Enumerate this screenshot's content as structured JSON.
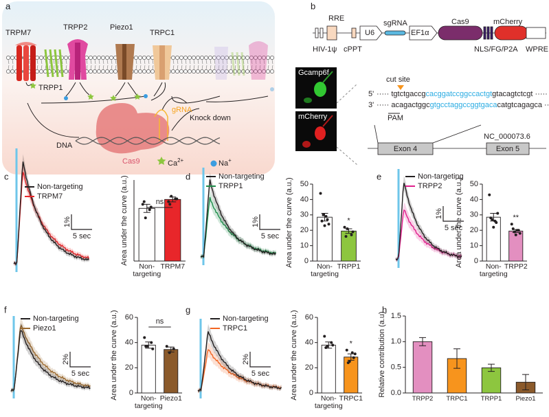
{
  "figure": {
    "panel_labels": [
      "a",
      "b"
    ],
    "a": {
      "channels": [
        "TRPM7",
        "TRPP2",
        "Piezo1",
        "TRPC1",
        "TRPP1"
      ],
      "grna": "gRNA",
      "dna": "DNA",
      "cas9": "Cas9",
      "knockdown": "Knock down",
      "ca": "Ca",
      "ca_charge": "2+",
      "na": "Na",
      "na_charge": "+"
    },
    "b": {
      "vector_top": [
        "RRE",
        "U6",
        "sgRNA",
        "EF1α",
        "Cas9",
        "mCherry"
      ],
      "vector_bottom": [
        "HIV-1ψ",
        "cPPT",
        "NLS/FG/P2A",
        "WPRE"
      ],
      "image_labels": [
        "Gcamp6f",
        "mCherry"
      ],
      "cut_site": "cut site",
      "strand5": "5'",
      "seq5": [
        "tgtctgaccg",
        "cacggatccggccactgt",
        "gtacagtctcgt"
      ],
      "strand3": "3'",
      "seq3": [
        "acagactggc",
        "gtgcctaggccggtgaca",
        "catgtcagagca"
      ],
      "pam": "PAM",
      "accession": "NC_000073.6",
      "exons": [
        "Exon 4",
        "Exon 5"
      ]
    }
  },
  "chart_data": [
    {
      "type": "bar",
      "label": "c",
      "ylabel": "Area under the curve (a.u.)",
      "categories": [
        "Non-targeting",
        "TRPM7"
      ],
      "colors": [
        "#ffffff",
        "#e8262a"
      ],
      "values": [
        19.5,
        22.8
      ],
      "errors": [
        1.5,
        0.9
      ],
      "points": [
        [
          21,
          19,
          16,
          20,
          22
        ],
        [
          22,
          23,
          24,
          23,
          21
        ]
      ],
      "significance": "ns",
      "bracket": true,
      "ylim": [
        0,
        30
      ],
      "traces": {
        "series": [
          {
            "name": "Non-targeting",
            "color": "#231f20"
          },
          {
            "name": "TRPM7",
            "color": "#e8262a"
          }
        ],
        "scale_y": "1%",
        "scale_x": "5 sec"
      }
    },
    {
      "type": "bar",
      "label": "d",
      "ylabel": "Area under the curve (a.u.)",
      "categories": [
        "Non-targeting",
        "TRPP1"
      ],
      "colors": [
        "#ffffff",
        "#8dc63f"
      ],
      "values": [
        28.5,
        19.5
      ],
      "errors": [
        2.5,
        1.5
      ],
      "points": [
        [
          44,
          27,
          30,
          24,
          26,
          29,
          23
        ],
        [
          22,
          17,
          21,
          19,
          16
        ]
      ],
      "significance": "*",
      "bracket": false,
      "ylim": [
        0,
        50
      ],
      "yticks": [
        0,
        10,
        20,
        30,
        40,
        50
      ],
      "traces": {
        "series": [
          {
            "name": "Non-targeting",
            "color": "#231f20"
          },
          {
            "name": "TRPP1",
            "color": "#1e8c4a"
          }
        ],
        "scale_y": "1%",
        "scale_x": "5 sec"
      }
    },
    {
      "type": "bar",
      "label": "e",
      "ylabel": "Area under the curve (a.u.)",
      "categories": [
        "Non-targeting",
        "TRPP2"
      ],
      "colors": [
        "#ffffff",
        "#e38fc0"
      ],
      "values": [
        28.5,
        19.5
      ],
      "errors": [
        2.5,
        1
      ],
      "points": [
        [
          43,
          25,
          27,
          31,
          28,
          26,
          22
        ],
        [
          24,
          20,
          19,
          18,
          21,
          20,
          17
        ]
      ],
      "significance": "**",
      "bracket": false,
      "ylim": [
        0,
        50
      ],
      "yticks": [
        0,
        10,
        20,
        30,
        40,
        50
      ],
      "traces": {
        "series": [
          {
            "name": "Non-targeting",
            "color": "#231f20"
          },
          {
            "name": "TRPP2",
            "color": "#e0208c"
          }
        ],
        "scale_y": "1%",
        "scale_x": "5 sec"
      }
    },
    {
      "type": "bar",
      "label": "f",
      "ylabel": "Area under the curve (a.u.)",
      "categories": [
        "Non-targeting",
        "Piezo1"
      ],
      "colors": [
        "#ffffff",
        "#8b5a2b"
      ],
      "values": [
        38,
        34.5
      ],
      "errors": [
        2.5,
        2
      ],
      "points": [
        [
          44,
          40,
          37,
          35,
          37
        ],
        [
          37,
          35,
          32
        ]
      ],
      "significance": "ns",
      "bracket": true,
      "ylim": [
        0,
        60
      ],
      "yticks": [
        0,
        20,
        40,
        60
      ],
      "traces": {
        "series": [
          {
            "name": "Non-targeting",
            "color": "#231f20"
          },
          {
            "name": "Piezo1",
            "color": "#9b6a2f"
          }
        ],
        "scale_y": "2%",
        "scale_x": "5 sec"
      }
    },
    {
      "type": "bar",
      "label": "g",
      "ylabel": "Area under the curve (a.u.)",
      "categories": [
        "Non-targeting",
        "TRPC1"
      ],
      "colors": [
        "#ffffff",
        "#f7941d"
      ],
      "values": [
        38,
        28.5
      ],
      "errors": [
        2.5,
        2.5
      ],
      "points": [
        [
          45,
          40,
          37,
          38,
          36
        ],
        [
          34,
          28,
          25,
          31,
          24,
          32
        ]
      ],
      "significance": "*",
      "bracket": false,
      "ylim": [
        0,
        60
      ],
      "yticks": [
        0,
        20,
        40,
        60
      ],
      "traces": {
        "series": [
          {
            "name": "Non-targeting",
            "color": "#231f20"
          },
          {
            "name": "TRPC1",
            "color": "#f26522"
          }
        ],
        "scale_y": "2%",
        "scale_x": "5 sec"
      }
    },
    {
      "type": "bar",
      "label": "h",
      "ylabel": "Relative contribution (a.u)",
      "categories": [
        "TRPP2",
        "TRPC1",
        "TRPP1",
        "Piezo1"
      ],
      "colors": [
        "#e38fc0",
        "#f7941d",
        "#8dc63f",
        "#8b5a2b"
      ],
      "values": [
        1.0,
        0.67,
        0.49,
        0.21
      ],
      "errors": [
        0.08,
        0.19,
        0.07,
        0.15
      ],
      "ylim": [
        0,
        1.5
      ],
      "yticks": [
        {
          "value": 0,
          "label": "0.0"
        },
        0.5,
        {
          "value": 1,
          "label": "1.0"
        },
        1.5
      ]
    }
  ]
}
